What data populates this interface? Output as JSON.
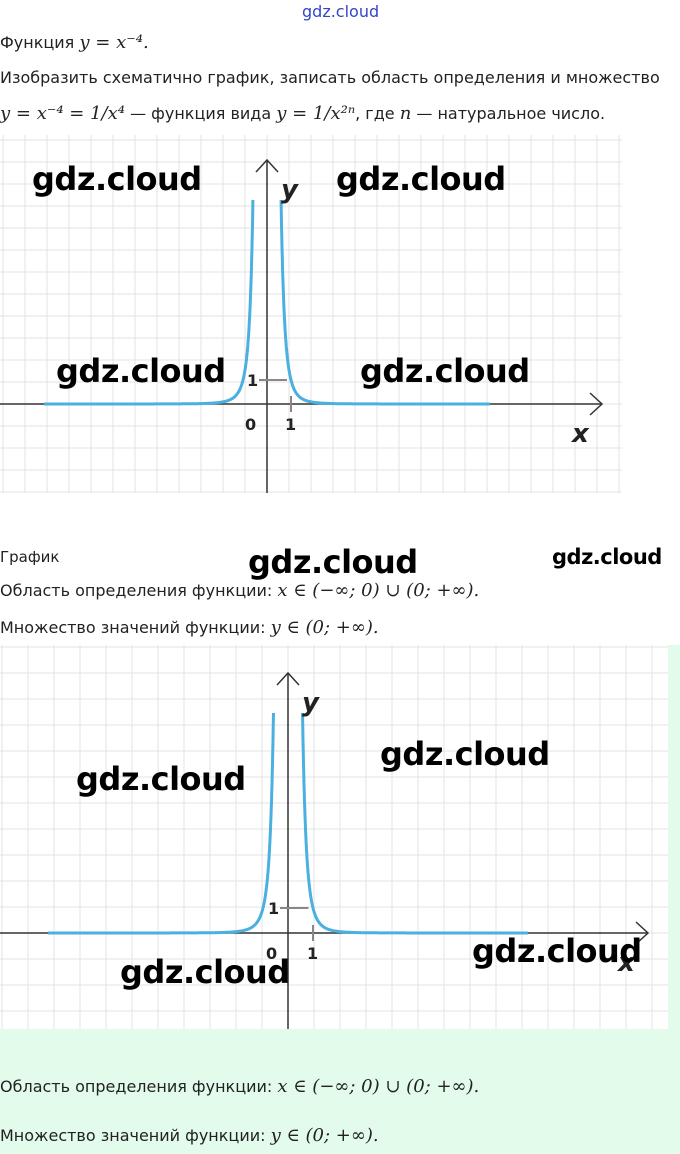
{
  "watermark_top": "gdz.cloud",
  "intro": {
    "function_label": "Функция",
    "function_formula": "y = x⁻⁴.",
    "task": "Изобразить схематично график, записать область определения и множество",
    "line2_formula": "y = x⁻⁴ = 1/x⁴",
    "line2_text": "— функция вида",
    "line2_formula2": "y = 1/x²ⁿ",
    "line2_text2": ", где",
    "line2_n": "n",
    "line2_text3": "— натуральное число."
  },
  "graph": {
    "x_label": "x",
    "y_label": "y",
    "tick_x": "1",
    "tick_y": "1",
    "origin": "0",
    "function": "y = x^-4",
    "axis_color": "#333333",
    "curve_color": "#4ab0e0",
    "grid_color": "#e3e3e3"
  },
  "answer1": {
    "heading": "График",
    "domain_label": "Область определения функции:",
    "domain_value": "x ∈ (−∞; 0) ∪ (0; +∞).",
    "range_label": "Множество значений функции:",
    "range_value": "y ∈ (0; +∞)."
  },
  "answer2": {
    "domain_label": "Область определения функции:",
    "domain_value": "x ∈ (−∞; 0) ∪ (0; +∞).",
    "range_label": "Множество значений функции:",
    "range_value": "y ∈ (0; +∞)."
  },
  "watermarks": [
    "gdz.cloud",
    "gdz.cloud",
    "gdz.cloud",
    "gdz.cloud",
    "gdz.cloud",
    "gdz.cloud",
    "gdz.cloud",
    "gdz.cloud",
    "gdz.cloud",
    "gdz.cloud"
  ],
  "background_green": "#e2fbea"
}
